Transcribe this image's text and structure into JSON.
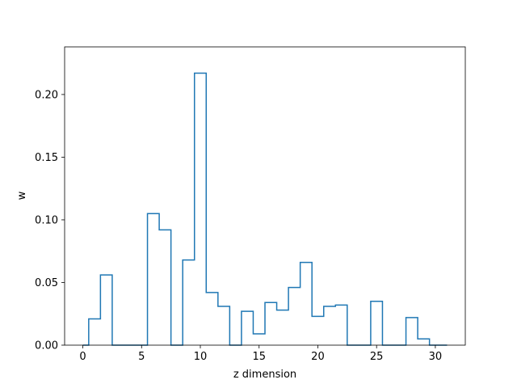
{
  "chart_data": {
    "type": "step",
    "title": "",
    "xlabel": "z dimension",
    "ylabel": "w",
    "xlim": [
      -1.55,
      32.55
    ],
    "ylim": [
      0,
      0.238
    ],
    "xticks": [
      0,
      5,
      10,
      15,
      20,
      25,
      30
    ],
    "yticks": [
      0.0,
      0.05,
      0.1,
      0.15,
      0.2
    ],
    "xtick_labels": [
      "0",
      "5",
      "10",
      "15",
      "20",
      "25",
      "30"
    ],
    "ytick_labels": [
      "0.00",
      "0.05",
      "0.10",
      "0.15",
      "0.20"
    ],
    "grid": false,
    "legend": "none",
    "series": [
      {
        "color": "#1f77b4",
        "x": [
          0,
          1,
          2,
          3,
          4,
          5,
          6,
          7,
          8,
          9,
          10,
          11,
          12,
          13,
          14,
          15,
          16,
          17,
          18,
          19,
          20,
          21,
          22,
          23,
          24,
          25,
          26,
          27,
          28,
          29,
          30,
          31
        ],
        "values": [
          0.0,
          0.021,
          0.056,
          0.0,
          0.0,
          0.0,
          0.105,
          0.092,
          0.0,
          0.068,
          0.217,
          0.042,
          0.031,
          0.0,
          0.027,
          0.009,
          0.034,
          0.028,
          0.046,
          0.066,
          0.023,
          0.031,
          0.032,
          0.0,
          0.0,
          0.035,
          0.0,
          0.0,
          0.022,
          0.005,
          0.0,
          0.0
        ]
      }
    ]
  }
}
